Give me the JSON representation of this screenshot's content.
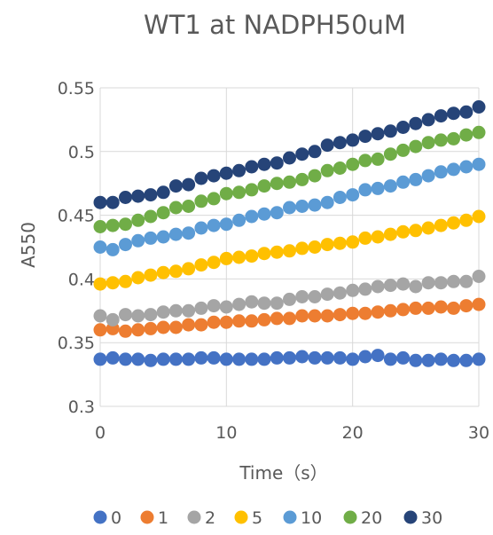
{
  "chart_data": {
    "type": "scatter",
    "title": "WT1 at NADPH50uM",
    "xlabel": "Time（s）",
    "ylabel": "A550",
    "xlim": [
      0,
      30
    ],
    "ylim": [
      0.3,
      0.55
    ],
    "x_ticks": [
      "0",
      "10",
      "20",
      "30"
    ],
    "y_ticks": [
      "0.3",
      "0.35",
      "0.4",
      "0.45",
      "0.5",
      "0.55"
    ],
    "grid": true,
    "legend_position": "bottom",
    "x": [
      0,
      1,
      2,
      3,
      4,
      5,
      6,
      7,
      8,
      9,
      10,
      11,
      12,
      13,
      14,
      15,
      16,
      17,
      18,
      19,
      20,
      21,
      22,
      23,
      24,
      25,
      26,
      27,
      28,
      29,
      30
    ],
    "series": [
      {
        "name": "0",
        "color": "#4472C4",
        "values": [
          0.337,
          0.338,
          0.337,
          0.337,
          0.336,
          0.337,
          0.337,
          0.337,
          0.338,
          0.338,
          0.337,
          0.337,
          0.337,
          0.337,
          0.338,
          0.338,
          0.339,
          0.338,
          0.338,
          0.338,
          0.337,
          0.339,
          0.34,
          0.337,
          0.338,
          0.336,
          0.336,
          0.337,
          0.336,
          0.336,
          0.337
        ]
      },
      {
        "name": "1",
        "color": "#ED7D31",
        "values": [
          0.36,
          0.361,
          0.359,
          0.36,
          0.361,
          0.362,
          0.362,
          0.364,
          0.364,
          0.366,
          0.366,
          0.367,
          0.367,
          0.368,
          0.369,
          0.369,
          0.371,
          0.371,
          0.371,
          0.372,
          0.373,
          0.373,
          0.374,
          0.375,
          0.376,
          0.377,
          0.377,
          0.378,
          0.377,
          0.379,
          0.38
        ]
      },
      {
        "name": "2",
        "color": "#A5A5A5",
        "values": [
          0.371,
          0.368,
          0.372,
          0.371,
          0.372,
          0.374,
          0.375,
          0.375,
          0.377,
          0.379,
          0.378,
          0.38,
          0.382,
          0.381,
          0.381,
          0.384,
          0.386,
          0.386,
          0.388,
          0.389,
          0.391,
          0.392,
          0.394,
          0.395,
          0.396,
          0.394,
          0.397,
          0.397,
          0.398,
          0.398,
          0.402
        ]
      },
      {
        "name": "5",
        "color": "#FFC000",
        "values": [
          0.396,
          0.397,
          0.398,
          0.401,
          0.403,
          0.405,
          0.406,
          0.408,
          0.411,
          0.413,
          0.416,
          0.417,
          0.418,
          0.42,
          0.421,
          0.422,
          0.424,
          0.425,
          0.427,
          0.428,
          0.429,
          0.432,
          0.433,
          0.435,
          0.437,
          0.438,
          0.44,
          0.442,
          0.444,
          0.446,
          0.449
        ]
      },
      {
        "name": "10",
        "color": "#5B9BD5",
        "values": [
          0.425,
          0.423,
          0.427,
          0.43,
          0.432,
          0.433,
          0.435,
          0.436,
          0.44,
          0.442,
          0.443,
          0.446,
          0.449,
          0.451,
          0.452,
          0.456,
          0.457,
          0.458,
          0.46,
          0.464,
          0.466,
          0.47,
          0.471,
          0.473,
          0.476,
          0.478,
          0.481,
          0.484,
          0.486,
          0.488,
          0.49
        ]
      },
      {
        "name": "20",
        "color": "#70AD47",
        "values": [
          0.441,
          0.442,
          0.443,
          0.446,
          0.449,
          0.452,
          0.456,
          0.457,
          0.461,
          0.463,
          0.467,
          0.468,
          0.47,
          0.473,
          0.475,
          0.476,
          0.478,
          0.481,
          0.485,
          0.487,
          0.49,
          0.493,
          0.494,
          0.498,
          0.501,
          0.504,
          0.507,
          0.509,
          0.51,
          0.513,
          0.515
        ]
      },
      {
        "name": "30",
        "color": "#264478",
        "values": [
          0.46,
          0.46,
          0.464,
          0.465,
          0.466,
          0.468,
          0.473,
          0.474,
          0.479,
          0.481,
          0.483,
          0.485,
          0.488,
          0.49,
          0.491,
          0.495,
          0.498,
          0.5,
          0.505,
          0.507,
          0.509,
          0.512,
          0.514,
          0.516,
          0.519,
          0.522,
          0.525,
          0.528,
          0.53,
          0.531,
          0.535
        ]
      }
    ]
  }
}
